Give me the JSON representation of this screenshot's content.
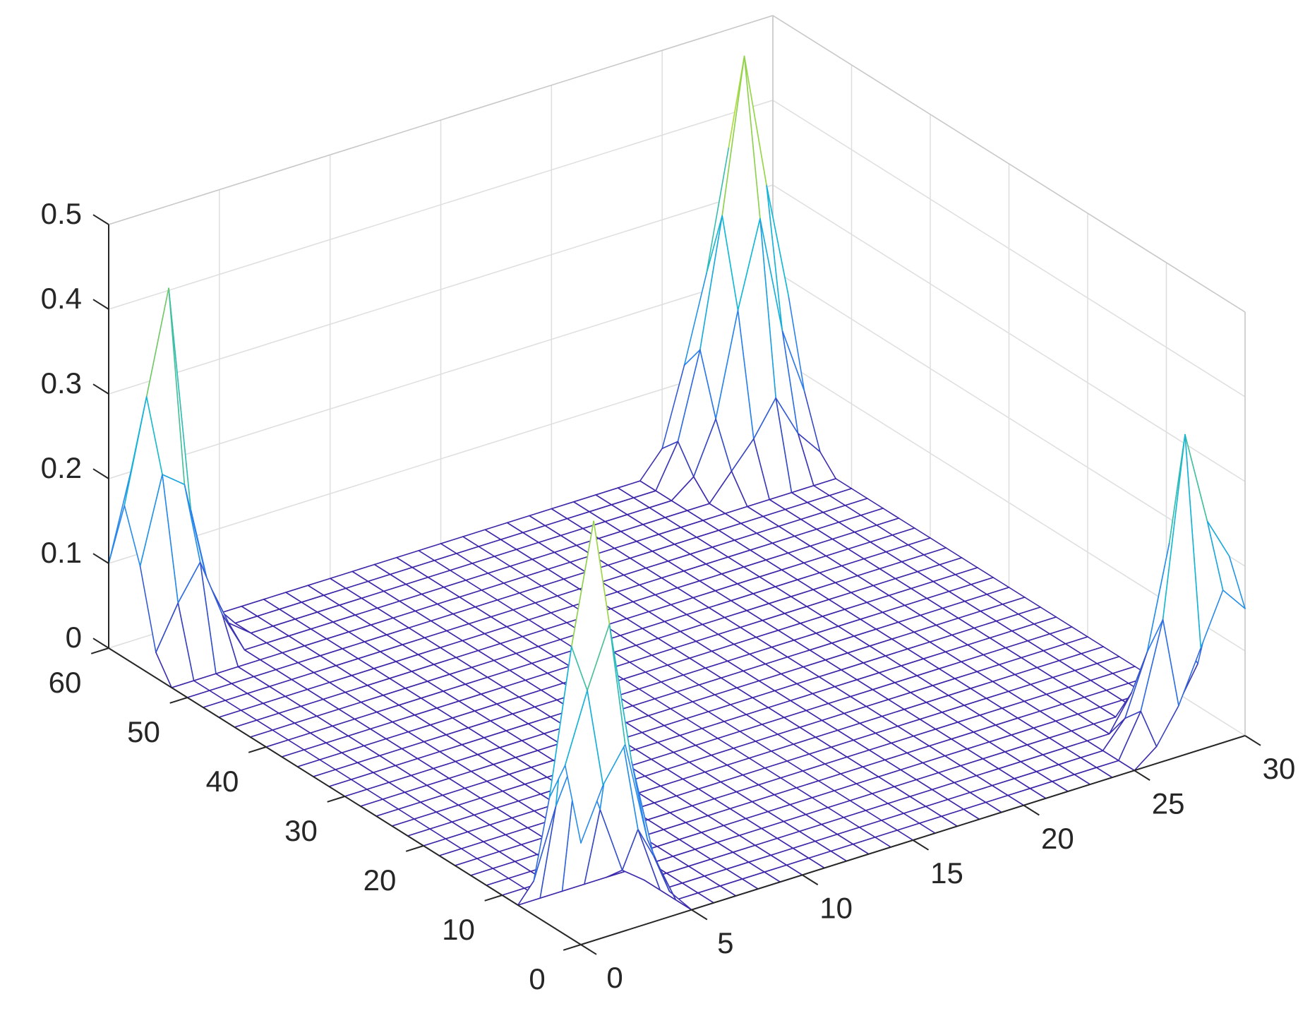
{
  "chart_data": {
    "type": "mesh",
    "x": [
      0,
      1,
      2,
      3,
      4,
      5,
      6,
      7,
      8,
      9,
      10,
      11,
      12,
      13,
      14,
      15,
      16,
      17,
      18,
      19,
      20,
      21,
      22,
      23,
      24,
      25,
      26,
      27,
      28,
      29,
      30
    ],
    "y": [
      0,
      2,
      4,
      6,
      8,
      10,
      12,
      14,
      16,
      18,
      20,
      22,
      24,
      26,
      28,
      30,
      32,
      34,
      36,
      38,
      40,
      42,
      44,
      46,
      48,
      50,
      52,
      54,
      56,
      58,
      60
    ],
    "z": [
      [
        0.12,
        0.18,
        0.22,
        0.1,
        0.03,
        0,
        0,
        0,
        0,
        0,
        0,
        0,
        0,
        0,
        0,
        0,
        0,
        0,
        0,
        0,
        0,
        0,
        0,
        0,
        0,
        0,
        0.02,
        0.06,
        0.12,
        0.18,
        0.15
      ],
      [
        0.2,
        0.28,
        0.35,
        0.18,
        0.06,
        0,
        0,
        0,
        0,
        0,
        0,
        0,
        0,
        0,
        0,
        0,
        0,
        0,
        0,
        0,
        0,
        0,
        0,
        0,
        0,
        0,
        0.05,
        0.15,
        0.36,
        0.25,
        0.2
      ],
      [
        0.15,
        0.32,
        0.46,
        0.24,
        0.08,
        0,
        0,
        0,
        0,
        0,
        0,
        0,
        0,
        0,
        0,
        0,
        0,
        0,
        0,
        0,
        0,
        0,
        0,
        0,
        0,
        0,
        0.03,
        0.1,
        0.22,
        0.3,
        0.14
      ],
      [
        0.04,
        0.12,
        0.18,
        0.1,
        0.02,
        0,
        0,
        0,
        0,
        0,
        0,
        0,
        0,
        0,
        0,
        0,
        0,
        0,
        0,
        0,
        0,
        0,
        0,
        0,
        0,
        0,
        0,
        0.04,
        0.08,
        0.1,
        0.05
      ],
      [
        0,
        0,
        0,
        0,
        0,
        0,
        0,
        0,
        0,
        0,
        0,
        0,
        0,
        0,
        0,
        0,
        0,
        0,
        0,
        0,
        0,
        0,
        0,
        0,
        0,
        0,
        0,
        0,
        0,
        0,
        0
      ],
      [
        0,
        0,
        0,
        0,
        0,
        0,
        0,
        0,
        0,
        0,
        0,
        0,
        0,
        0,
        0,
        0,
        0,
        0,
        0,
        0,
        0,
        0,
        0,
        0,
        0,
        0,
        0,
        0,
        0,
        0,
        0
      ],
      [
        0,
        0,
        0,
        0,
        0,
        0,
        0,
        0,
        0,
        0,
        0,
        0,
        0,
        0,
        0,
        0,
        0,
        0,
        0,
        0,
        0,
        0,
        0,
        0,
        0,
        0,
        0,
        0,
        0,
        0,
        0
      ],
      [
        0,
        0,
        0,
        0,
        0,
        0,
        0,
        0,
        0,
        0,
        0,
        0,
        0,
        0,
        0,
        0,
        0,
        0,
        0,
        0,
        0,
        0,
        0,
        0,
        0,
        0,
        0,
        0,
        0,
        0,
        0
      ],
      [
        0,
        0,
        0,
        0,
        0,
        0,
        0,
        0,
        0,
        0,
        0,
        0,
        0,
        0,
        0,
        0,
        0,
        0,
        0,
        0,
        0,
        0,
        0,
        0,
        0,
        0,
        0,
        0,
        0,
        0,
        0
      ],
      [
        0,
        0,
        0,
        0,
        0,
        0,
        0,
        0,
        0,
        0,
        0,
        0,
        0,
        0,
        0,
        0,
        0,
        0,
        0,
        0,
        0,
        0,
        0,
        0,
        0,
        0,
        0,
        0,
        0,
        0,
        0
      ],
      [
        0,
        0,
        0,
        0,
        0,
        0,
        0,
        0,
        0,
        0,
        0,
        0,
        0,
        0,
        0,
        0,
        0,
        0,
        0,
        0,
        0,
        0,
        0,
        0,
        0,
        0,
        0,
        0,
        0,
        0,
        0
      ],
      [
        0,
        0,
        0,
        0,
        0,
        0,
        0,
        0,
        0,
        0,
        0,
        0,
        0,
        0,
        0,
        0,
        0,
        0,
        0,
        0,
        0,
        0,
        0,
        0,
        0,
        0,
        0,
        0,
        0,
        0,
        0
      ],
      [
        0,
        0,
        0,
        0,
        0,
        0,
        0,
        0,
        0,
        0,
        0,
        0,
        0,
        0,
        0,
        0,
        0,
        0,
        0,
        0,
        0,
        0,
        0,
        0,
        0,
        0,
        0,
        0,
        0,
        0,
        0
      ],
      [
        0,
        0,
        0,
        0,
        0,
        0,
        0,
        0,
        0,
        0,
        0,
        0,
        0,
        0,
        0,
        0,
        0,
        0,
        0,
        0,
        0,
        0,
        0,
        0,
        0,
        0,
        0,
        0,
        0,
        0,
        0
      ],
      [
        0,
        0,
        0,
        0,
        0,
        0,
        0,
        0,
        0,
        0,
        0,
        0,
        0,
        0,
        0,
        0,
        0,
        0,
        0,
        0,
        0,
        0,
        0,
        0,
        0,
        0,
        0,
        0,
        0,
        0,
        0
      ],
      [
        0,
        0,
        0,
        0,
        0,
        0,
        0,
        0,
        0,
        0,
        0,
        0,
        0,
        0,
        0,
        0,
        0,
        0,
        0,
        0,
        0,
        0,
        0,
        0,
        0,
        0,
        0,
        0,
        0,
        0,
        0
      ],
      [
        0,
        0,
        0,
        0,
        0,
        0,
        0,
        0,
        0,
        0,
        0,
        0,
        0,
        0,
        0,
        0,
        0,
        0,
        0,
        0,
        0,
        0,
        0,
        0,
        0,
        0,
        0,
        0,
        0,
        0,
        0
      ],
      [
        0,
        0,
        0,
        0,
        0,
        0,
        0,
        0,
        0,
        0,
        0,
        0,
        0,
        0,
        0,
        0,
        0,
        0,
        0,
        0,
        0,
        0,
        0,
        0,
        0,
        0,
        0,
        0,
        0,
        0,
        0
      ],
      [
        0,
        0,
        0,
        0,
        0,
        0,
        0,
        0,
        0,
        0,
        0,
        0,
        0,
        0,
        0,
        0,
        0,
        0,
        0,
        0,
        0,
        0,
        0,
        0,
        0,
        0,
        0,
        0,
        0,
        0,
        0
      ],
      [
        0,
        0,
        0,
        0,
        0,
        0,
        0,
        0,
        0,
        0,
        0,
        0,
        0,
        0,
        0,
        0,
        0,
        0,
        0,
        0,
        0,
        0,
        0,
        0,
        0,
        0,
        0,
        0,
        0,
        0,
        0
      ],
      [
        0,
        0,
        0,
        0,
        0,
        0,
        0,
        0,
        0,
        0,
        0,
        0,
        0,
        0,
        0,
        0,
        0,
        0,
        0,
        0,
        0,
        0,
        0,
        0,
        0,
        0,
        0,
        0,
        0,
        0,
        0
      ],
      [
        0,
        0,
        0,
        0,
        0,
        0,
        0,
        0,
        0,
        0,
        0,
        0,
        0,
        0,
        0,
        0,
        0,
        0,
        0,
        0,
        0,
        0,
        0,
        0,
        0,
        0,
        0,
        0,
        0,
        0,
        0
      ],
      [
        0,
        0,
        0,
        0,
        0,
        0,
        0,
        0,
        0,
        0,
        0,
        0,
        0,
        0,
        0,
        0,
        0,
        0,
        0,
        0,
        0,
        0,
        0,
        0,
        0,
        0,
        0,
        0,
        0,
        0,
        0
      ],
      [
        0,
        0,
        0,
        0,
        0,
        0,
        0,
        0,
        0,
        0,
        0,
        0,
        0,
        0,
        0,
        0,
        0,
        0,
        0,
        0,
        0,
        0,
        0,
        0,
        0,
        0,
        0,
        0,
        0,
        0,
        0
      ],
      [
        0,
        0,
        0,
        0,
        0,
        0,
        0,
        0,
        0,
        0,
        0,
        0,
        0,
        0,
        0,
        0,
        0,
        0,
        0,
        0,
        0,
        0,
        0,
        0,
        0,
        0,
        0,
        0,
        0,
        0,
        0
      ],
      [
        0,
        0,
        0,
        0,
        0,
        0,
        0,
        0,
        0,
        0,
        0,
        0,
        0,
        0,
        0,
        0,
        0,
        0,
        0,
        0,
        0,
        0,
        0,
        0,
        0,
        0,
        0,
        0,
        0,
        0,
        0
      ],
      [
        0,
        0,
        0,
        0,
        0,
        0,
        0,
        0,
        0,
        0,
        0,
        0,
        0,
        0,
        0,
        0,
        0,
        0,
        0,
        0,
        0,
        0,
        0,
        0,
        0,
        0,
        0,
        0,
        0,
        0,
        0
      ],
      [
        0.03,
        0.08,
        0.12,
        0.05,
        0,
        0,
        0,
        0,
        0,
        0,
        0,
        0,
        0,
        0,
        0,
        0,
        0,
        0,
        0,
        0,
        0,
        0,
        0,
        0,
        0,
        0,
        0.03,
        0.06,
        0.1,
        0.05,
        0.02
      ],
      [
        0.12,
        0.22,
        0.2,
        0.08,
        0.02,
        0,
        0,
        0,
        0,
        0,
        0,
        0,
        0,
        0,
        0,
        0,
        0,
        0,
        0,
        0,
        0,
        0,
        0,
        0,
        0,
        0.02,
        0.08,
        0.2,
        0.3,
        0.16,
        0.08
      ],
      [
        0.18,
        0.3,
        0.42,
        0.15,
        0.03,
        0,
        0,
        0,
        0,
        0,
        0,
        0,
        0,
        0,
        0,
        0,
        0,
        0,
        0,
        0,
        0,
        0,
        0,
        0,
        0,
        0.05,
        0.15,
        0.3,
        0.48,
        0.32,
        0.18
      ],
      [
        0.1,
        0.2,
        0.28,
        0.12,
        0.03,
        0,
        0,
        0,
        0,
        0,
        0,
        0,
        0,
        0,
        0,
        0,
        0,
        0,
        0,
        0,
        0,
        0,
        0,
        0,
        0,
        0.03,
        0.12,
        0.22,
        0.36,
        0.25,
        0.12
      ]
    ],
    "xlim": [
      0,
      30
    ],
    "ylim": [
      0,
      60
    ],
    "zlim": [
      0,
      0.5
    ],
    "xticks": [
      0,
      5,
      10,
      15,
      20,
      25,
      30
    ],
    "yticks": [
      0,
      10,
      20,
      30,
      40,
      50,
      60
    ],
    "zticks": [
      0,
      0.1,
      0.2,
      0.3,
      0.4,
      0.5
    ],
    "grid": true,
    "colormap": [
      "#3e26a8",
      "#2c7ef0",
      "#14b7d6",
      "#80cb58",
      "#f9fb0e"
    ]
  }
}
